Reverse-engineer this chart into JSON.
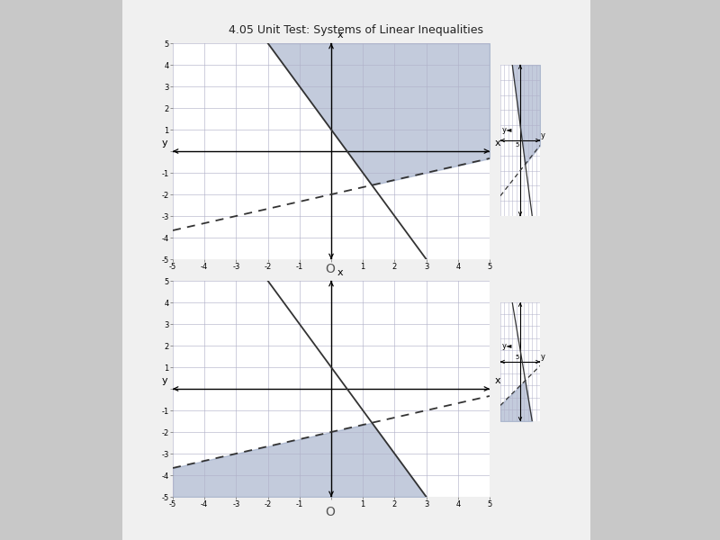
{
  "title": "4.05 Unit Test: Systems of Linear Inequalities",
  "bg_outer": "#c8c8c8",
  "bg_page": "#f0f0f0",
  "graph_bg": "#ffffff",
  "grid_color": "#b0b0c8",
  "grid_alpha": 0.7,
  "shade_color": "#8899bb",
  "shade_alpha": 0.5,
  "line1_slope": -2,
  "line1_intercept": 1,
  "line1_style": "solid",
  "line2_slope": 0.3333,
  "line2_intercept": -2,
  "line2_style": "dashed",
  "line_color": "#333333",
  "line_width": 1.3,
  "xlim": [
    -5,
    5
  ],
  "ylim": [
    -5,
    5
  ],
  "tick_fontsize": 6,
  "axis_label_fontsize": 8,
  "title_fontsize": 9,
  "circle_label": "O"
}
